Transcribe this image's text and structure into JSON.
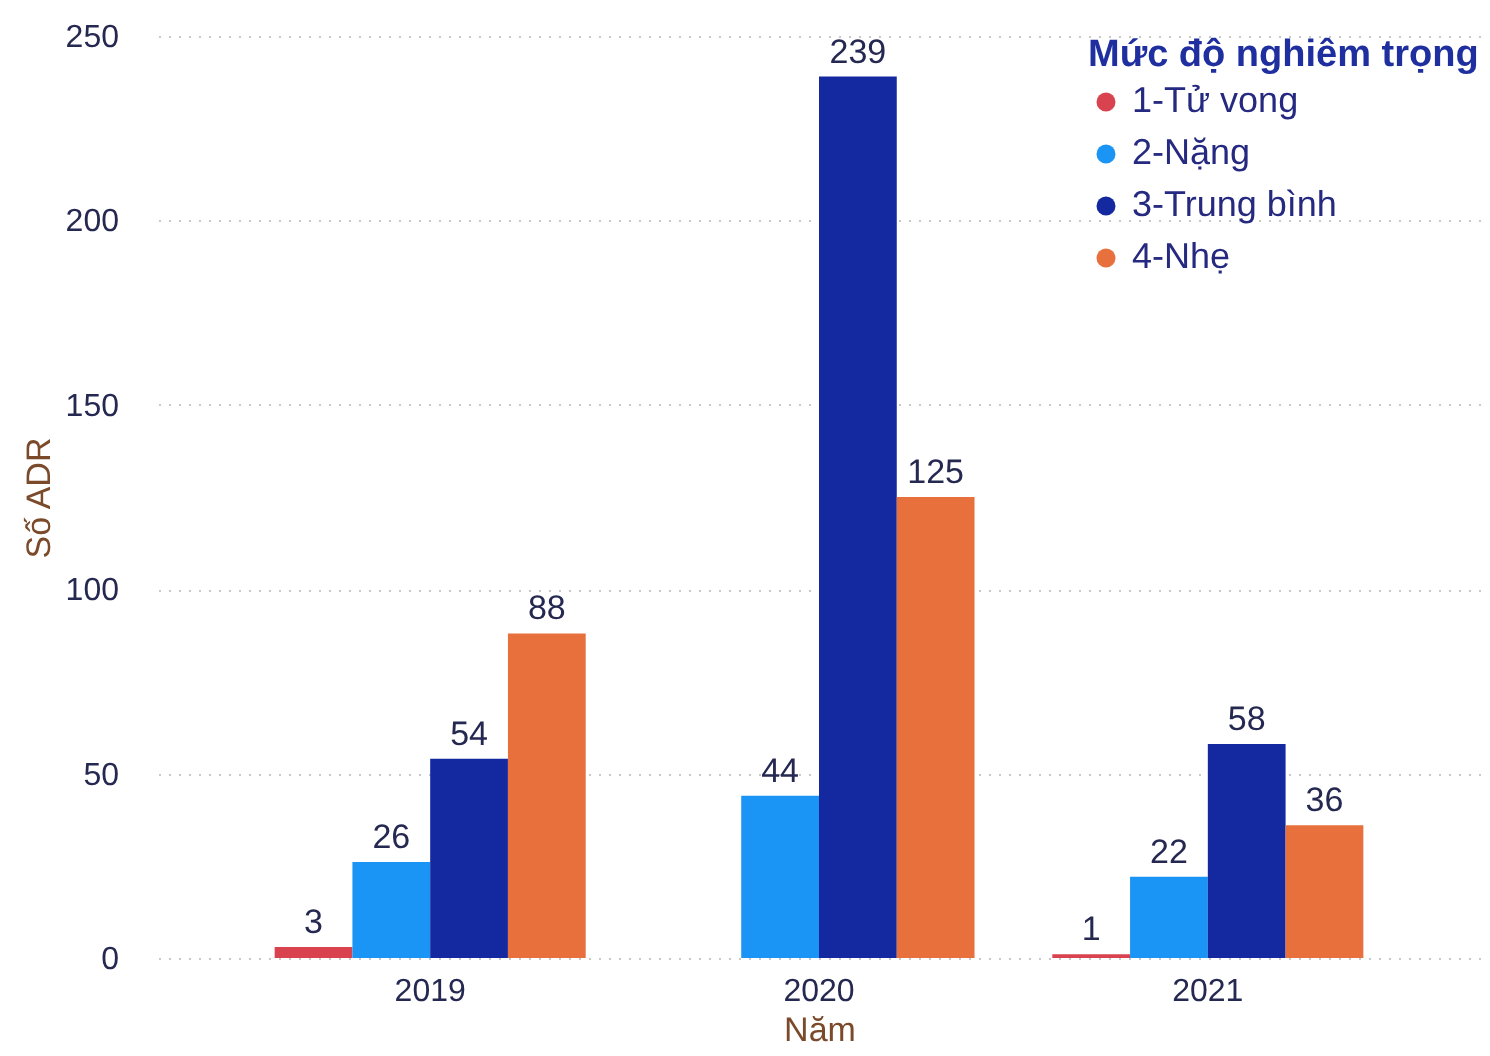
{
  "chart_data": {
    "type": "bar",
    "xlabel": "Năm",
    "ylabel": "Số ADR",
    "legend_title": "Mức độ nghiêm trọng",
    "categories": [
      "2019",
      "2020",
      "2021"
    ],
    "series": [
      {
        "name": "1-Tử vong",
        "color": "#d9434f",
        "values": [
          3,
          null,
          1
        ]
      },
      {
        "name": "2-Nặng",
        "color": "#1a94f5",
        "values": [
          26,
          44,
          22
        ]
      },
      {
        "name": "3-Trung bình",
        "color": "#1428a0",
        "values": [
          54,
          239,
          58
        ]
      },
      {
        "name": "4-Nhẹ",
        "color": "#e8703c",
        "values": [
          88,
          125,
          36
        ]
      }
    ],
    "ylim": [
      0,
      250
    ],
    "yticks": [
      0,
      50,
      100,
      150,
      200,
      250
    ],
    "grid": "y",
    "legend": "top right",
    "data_labels": true
  }
}
